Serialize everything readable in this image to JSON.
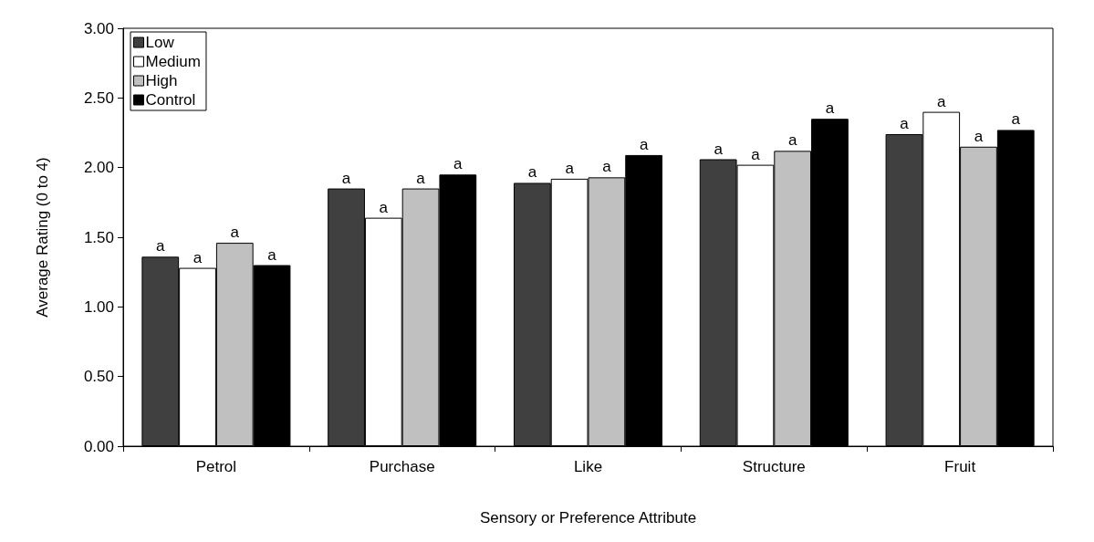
{
  "chart_data": {
    "type": "bar",
    "xlabel": "Sensory or Preference Attribute",
    "ylabel": "Average Rating (0 to 4)",
    "categories": [
      "Petrol",
      "Purchase",
      "Like",
      "Structure",
      "Fruit"
    ],
    "series": [
      {
        "name": "Low",
        "color": "#404040",
        "values": [
          1.36,
          1.85,
          1.89,
          2.06,
          2.24
        ],
        "value_labels": [
          "a",
          "a",
          "a",
          "a",
          "a"
        ]
      },
      {
        "name": "Medium",
        "color": "#ffffff",
        "values": [
          1.28,
          1.64,
          1.92,
          2.02,
          2.4
        ],
        "value_labels": [
          "a",
          "a",
          "a",
          "a",
          "a"
        ]
      },
      {
        "name": "High",
        "color": "#c0c0c0",
        "values": [
          1.46,
          1.85,
          1.93,
          2.12,
          2.15
        ],
        "value_labels": [
          "a",
          "a",
          "a",
          "a",
          "a"
        ]
      },
      {
        "name": "Control",
        "color": "#000000",
        "values": [
          1.3,
          1.95,
          2.09,
          2.35,
          2.27
        ],
        "value_labels": [
          "a",
          "a",
          "a",
          "a",
          "a"
        ]
      }
    ],
    "ylim": [
      0,
      3
    ],
    "yticks": [
      {
        "value": 0,
        "label": "0.00"
      },
      {
        "value": 0.5,
        "label": "0.50"
      },
      {
        "value": 1,
        "label": "1.00"
      },
      {
        "value": 1.5,
        "label": "1.50"
      },
      {
        "value": 2,
        "label": "2.00"
      },
      {
        "value": 2.5,
        "label": "2.50"
      },
      {
        "value": 3,
        "label": "3.00"
      }
    ],
    "grid": false,
    "legend": "top left"
  }
}
